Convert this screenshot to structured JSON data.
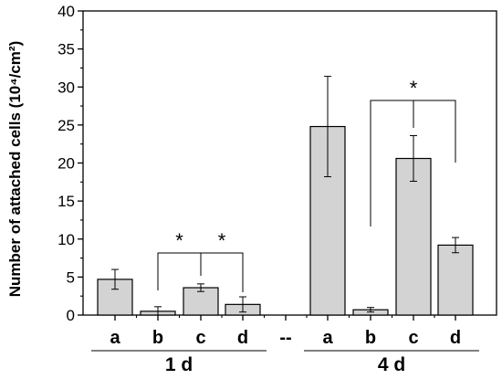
{
  "chart_data": {
    "type": "bar",
    "ylabel": "Number of attached cells (10⁴/cm²)",
    "ylim": [
      0,
      40
    ],
    "yticks": [
      0,
      5,
      10,
      15,
      20,
      25,
      30,
      35,
      40
    ],
    "grid": false,
    "bar_color": "#d3d3d3",
    "groups": [
      {
        "label": "1 d",
        "categories": [
          "a",
          "b",
          "c",
          "d"
        ],
        "values": [
          4.7,
          0.5,
          3.6,
          1.4
        ],
        "errors": [
          1.3,
          0.6,
          0.5,
          1.0
        ]
      },
      {
        "label": "4 d",
        "categories": [
          "a",
          "b",
          "c",
          "d"
        ],
        "values": [
          24.8,
          0.7,
          20.6,
          9.2
        ],
        "errors": [
          6.6,
          0.3,
          3.0,
          1.0
        ]
      }
    ],
    "separator_label": "--",
    "significance": [
      {
        "group": 0,
        "from": 1,
        "to": 2,
        "label": "*"
      },
      {
        "group": 0,
        "from": 2,
        "to": 3,
        "label": "*"
      },
      {
        "group": 1,
        "from": 1,
        "to": 3,
        "mid": 2,
        "label": "*"
      }
    ]
  }
}
